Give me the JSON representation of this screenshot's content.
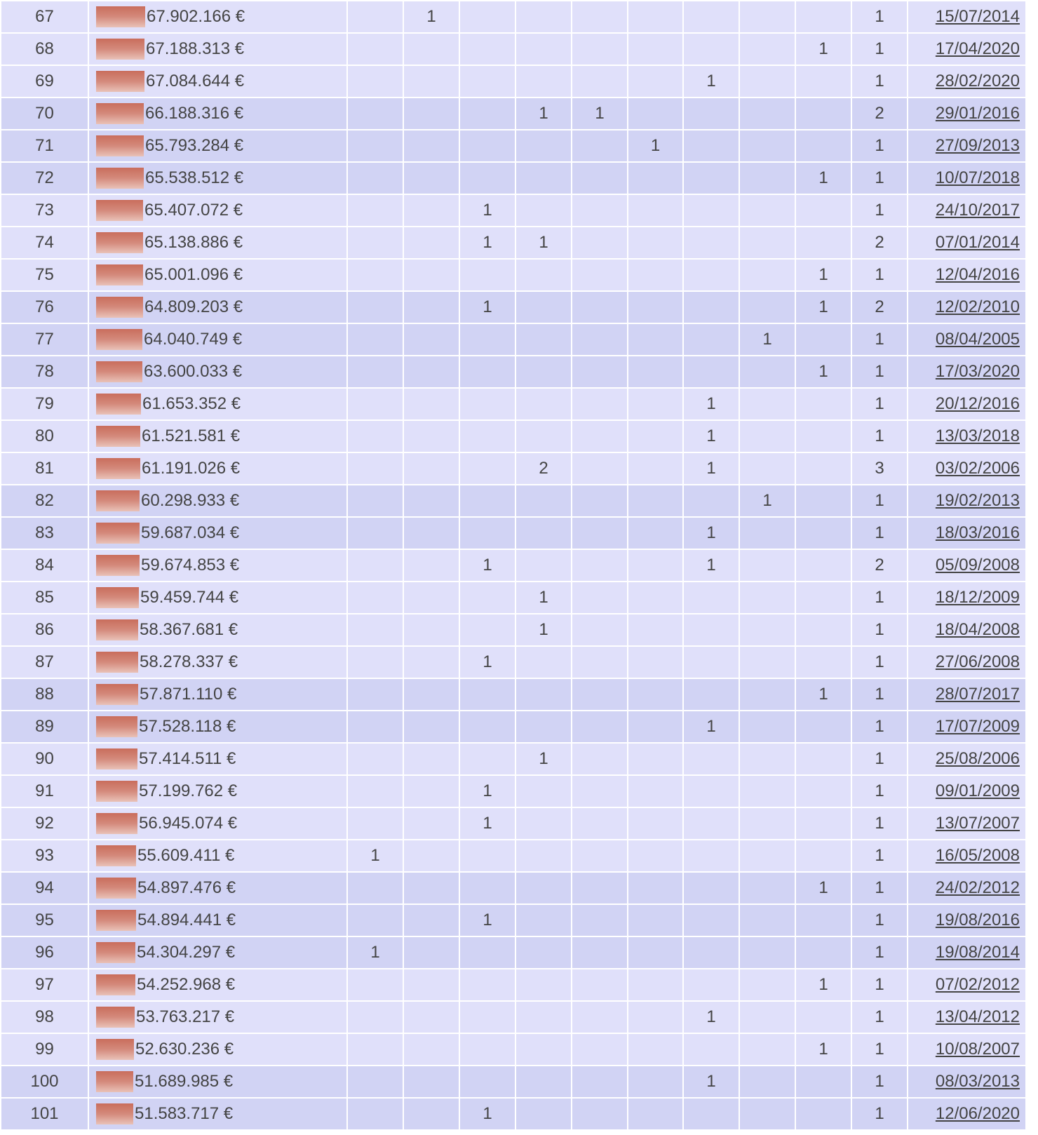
{
  "rows": [
    {
      "rank": "67",
      "amount": "67.902.166 €",
      "cols": [
        "",
        "1",
        "",
        "",
        "",
        "",
        "",
        "",
        "",
        ""
      ],
      "total": "1",
      "date": "15/07/2014"
    },
    {
      "rank": "68",
      "amount": "67.188.313 €",
      "cols": [
        "",
        "",
        "",
        "",
        "",
        "",
        "",
        "",
        "1"
      ],
      "total": "1",
      "date": "17/04/2020"
    },
    {
      "rank": "69",
      "amount": "67.084.644 €",
      "cols": [
        "",
        "",
        "",
        "",
        "",
        "",
        "1",
        "",
        ""
      ],
      "total": "1",
      "date": "28/02/2020"
    },
    {
      "rank": "70",
      "amount": "66.188.316 €",
      "cols": [
        "",
        "",
        "",
        "1",
        "1",
        "",
        "",
        "",
        ""
      ],
      "total": "2",
      "date": "29/01/2016"
    },
    {
      "rank": "71",
      "amount": "65.793.284 €",
      "cols": [
        "",
        "",
        "",
        "",
        "",
        "1",
        "",
        "",
        ""
      ],
      "total": "1",
      "date": "27/09/2013"
    },
    {
      "rank": "72",
      "amount": "65.538.512 €",
      "cols": [
        "",
        "",
        "",
        "",
        "",
        "",
        "",
        "",
        "1"
      ],
      "total": "1",
      "date": "10/07/2018"
    },
    {
      "rank": "73",
      "amount": "65.407.072 €",
      "cols": [
        "",
        "",
        "1",
        "",
        "",
        "",
        "",
        "",
        ""
      ],
      "total": "1",
      "date": "24/10/2017"
    },
    {
      "rank": "74",
      "amount": "65.138.886 €",
      "cols": [
        "",
        "",
        "1",
        "1",
        "",
        "",
        "",
        "",
        ""
      ],
      "total": "2",
      "date": "07/01/2014"
    },
    {
      "rank": "75",
      "amount": "65.001.096 €",
      "cols": [
        "",
        "",
        "",
        "",
        "",
        "",
        "",
        "",
        "1"
      ],
      "total": "1",
      "date": "12/04/2016"
    },
    {
      "rank": "76",
      "amount": "64.809.203 €",
      "cols": [
        "",
        "",
        "1",
        "",
        "",
        "",
        "",
        "",
        "1"
      ],
      "total": "2",
      "date": "12/02/2010"
    },
    {
      "rank": "77",
      "amount": "64.040.749 €",
      "cols": [
        "",
        "",
        "",
        "",
        "",
        "",
        "",
        "1",
        ""
      ],
      "total": "1",
      "date": "08/04/2005"
    },
    {
      "rank": "78",
      "amount": "63.600.033 €",
      "cols": [
        "",
        "",
        "",
        "",
        "",
        "",
        "",
        "",
        "1"
      ],
      "total": "1",
      "date": "17/03/2020"
    },
    {
      "rank": "79",
      "amount": "61.653.352 €",
      "cols": [
        "",
        "",
        "",
        "",
        "",
        "",
        "1",
        "",
        ""
      ],
      "total": "1",
      "date": "20/12/2016"
    },
    {
      "rank": "80",
      "amount": "61.521.581 €",
      "cols": [
        "",
        "",
        "",
        "",
        "",
        "",
        "1",
        "",
        ""
      ],
      "total": "1",
      "date": "13/03/2018"
    },
    {
      "rank": "81",
      "amount": "61.191.026 €",
      "cols": [
        "",
        "",
        "",
        "2",
        "",
        "",
        "1",
        "",
        ""
      ],
      "total": "3",
      "date": "03/02/2006"
    },
    {
      "rank": "82",
      "amount": "60.298.933 €",
      "cols": [
        "",
        "",
        "",
        "",
        "",
        "",
        "",
        "1",
        ""
      ],
      "total": "1",
      "date": "19/02/2013"
    },
    {
      "rank": "83",
      "amount": "59.687.034 €",
      "cols": [
        "",
        "",
        "",
        "",
        "",
        "",
        "1",
        "",
        ""
      ],
      "total": "1",
      "date": "18/03/2016"
    },
    {
      "rank": "84",
      "amount": "59.674.853 €",
      "cols": [
        "",
        "",
        "1",
        "",
        "",
        "",
        "1",
        "",
        ""
      ],
      "total": "2",
      "date": "05/09/2008"
    },
    {
      "rank": "85",
      "amount": "59.459.744 €",
      "cols": [
        "",
        "",
        "",
        "1",
        "",
        "",
        "",
        "",
        ""
      ],
      "total": "1",
      "date": "18/12/2009"
    },
    {
      "rank": "86",
      "amount": "58.367.681 €",
      "cols": [
        "",
        "",
        "",
        "1",
        "",
        "",
        "",
        "",
        ""
      ],
      "total": "1",
      "date": "18/04/2008"
    },
    {
      "rank": "87",
      "amount": "58.278.337 €",
      "cols": [
        "",
        "",
        "1",
        "",
        "",
        "",
        "",
        "",
        ""
      ],
      "total": "1",
      "date": "27/06/2008"
    },
    {
      "rank": "88",
      "amount": "57.871.110 €",
      "cols": [
        "",
        "",
        "",
        "",
        "",
        "",
        "",
        "",
        "1"
      ],
      "total": "1",
      "date": "28/07/2017"
    },
    {
      "rank": "89",
      "amount": "57.528.118 €",
      "cols": [
        "",
        "",
        "",
        "",
        "",
        "",
        "1",
        "",
        ""
      ],
      "total": "1",
      "date": "17/07/2009"
    },
    {
      "rank": "90",
      "amount": "57.414.511 €",
      "cols": [
        "",
        "",
        "",
        "1",
        "",
        "",
        "",
        "",
        ""
      ],
      "total": "1",
      "date": "25/08/2006"
    },
    {
      "rank": "91",
      "amount": "57.199.762 €",
      "cols": [
        "",
        "",
        "1",
        "",
        "",
        "",
        "",
        "",
        ""
      ],
      "total": "1",
      "date": "09/01/2009"
    },
    {
      "rank": "92",
      "amount": "56.945.074 €",
      "cols": [
        "",
        "",
        "1",
        "",
        "",
        "",
        "",
        "",
        ""
      ],
      "total": "1",
      "date": "13/07/2007"
    },
    {
      "rank": "93",
      "amount": "55.609.411 €",
      "cols": [
        "1",
        "",
        "",
        "",
        "",
        "",
        "",
        "",
        ""
      ],
      "total": "1",
      "date": "16/05/2008"
    },
    {
      "rank": "94",
      "amount": "54.897.476 €",
      "cols": [
        "",
        "",
        "",
        "",
        "",
        "",
        "",
        "",
        "1"
      ],
      "total": "1",
      "date": "24/02/2012"
    },
    {
      "rank": "95",
      "amount": "54.894.441 €",
      "cols": [
        "",
        "",
        "1",
        "",
        "",
        "",
        "",
        "",
        ""
      ],
      "total": "1",
      "date": "19/08/2016"
    },
    {
      "rank": "96",
      "amount": "54.304.297 €",
      "cols": [
        "1",
        "",
        "",
        "",
        "",
        "",
        "",
        "",
        ""
      ],
      "total": "1",
      "date": "19/08/2014"
    },
    {
      "rank": "97",
      "amount": "54.252.968 €",
      "cols": [
        "",
        "",
        "",
        "",
        "",
        "",
        "",
        "",
        "1"
      ],
      "total": "1",
      "date": "07/02/2012"
    },
    {
      "rank": "98",
      "amount": "53.763.217 €",
      "cols": [
        "",
        "",
        "",
        "",
        "",
        "",
        "1",
        "",
        ""
      ],
      "total": "1",
      "date": "13/04/2012"
    },
    {
      "rank": "99",
      "amount": "52.630.236 €",
      "cols": [
        "",
        "",
        "",
        "",
        "",
        "",
        "",
        "",
        "1"
      ],
      "total": "1",
      "date": "10/08/2007"
    },
    {
      "rank": "100",
      "amount": "51.689.985 €",
      "cols": [
        "",
        "",
        "",
        "",
        "",
        "",
        "1",
        "",
        ""
      ],
      "total": "1",
      "date": "08/03/2013"
    },
    {
      "rank": "101",
      "amount": "51.583.717 €",
      "cols": [
        "",
        "",
        "1",
        "",
        "",
        "",
        "",
        "",
        ""
      ],
      "total": "1",
      "date": "12/06/2020"
    }
  ]
}
